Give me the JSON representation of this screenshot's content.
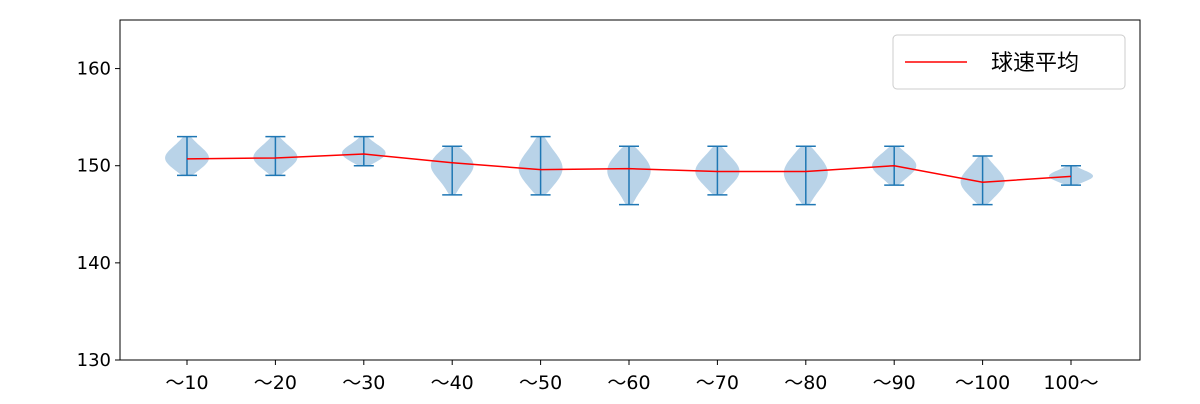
{
  "chart_data": {
    "type": "violin",
    "categories": [
      "〜10",
      "〜20",
      "〜30",
      "〜40",
      "〜50",
      "〜60",
      "〜70",
      "〜80",
      "〜90",
      "〜100",
      "100〜"
    ],
    "ylim": [
      130,
      165
    ],
    "yticks": [
      130,
      140,
      150,
      160
    ],
    "grid": false,
    "legend_position": "top-right",
    "violins": [
      {
        "min": 149,
        "max": 153,
        "mean": 150.7
      },
      {
        "min": 149,
        "max": 153,
        "mean": 150.8
      },
      {
        "min": 150,
        "max": 153,
        "mean": 151.2
      },
      {
        "min": 147,
        "max": 152,
        "mean": 150.3
      },
      {
        "min": 147,
        "max": 153,
        "mean": 149.6
      },
      {
        "min": 146,
        "max": 152,
        "mean": 149.7
      },
      {
        "min": 147,
        "max": 152,
        "mean": 149.4
      },
      {
        "min": 146,
        "max": 152,
        "mean": 149.4
      },
      {
        "min": 148,
        "max": 152,
        "mean": 150.0
      },
      {
        "min": 146,
        "max": 151,
        "mean": 148.3
      },
      {
        "min": 148,
        "max": 150,
        "mean": 148.9
      }
    ],
    "series": [
      {
        "name": "球速平均",
        "type": "line",
        "color": "#ff0000",
        "values": [
          150.7,
          150.8,
          151.2,
          150.3,
          149.6,
          149.7,
          149.4,
          149.4,
          150.0,
          148.3,
          148.9
        ]
      }
    ],
    "colors": {
      "violin_fill": "#b9d3e8",
      "violin_lines": "#1f77b4",
      "mean_line": "#ff0000",
      "axis": "#000000"
    }
  }
}
